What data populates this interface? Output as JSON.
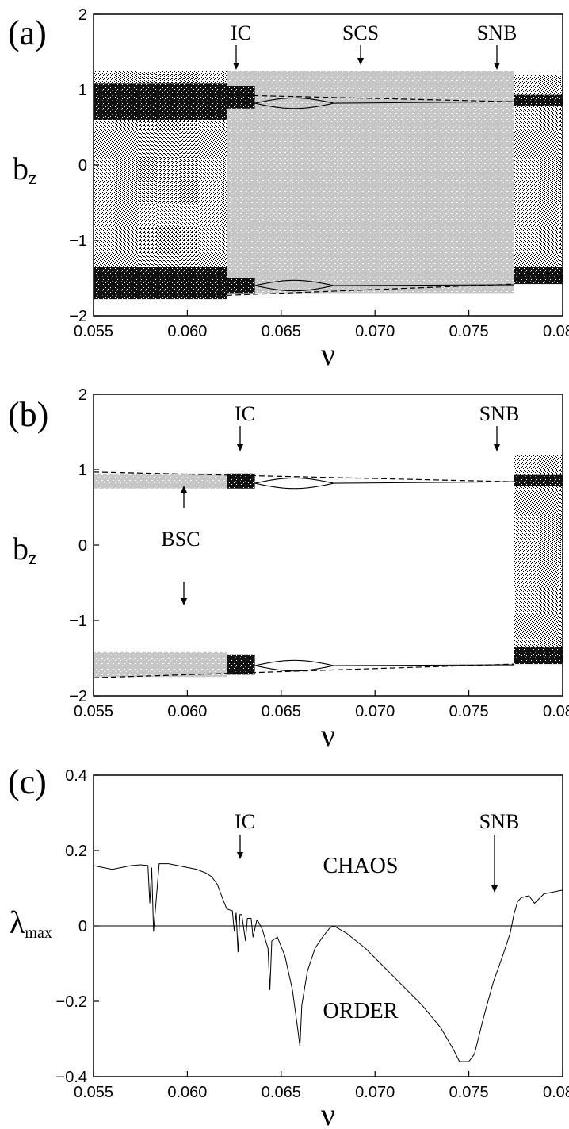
{
  "colors": {
    "chaos_black": "#000000",
    "grey": "#c8c8c8",
    "axis": "#000000"
  },
  "chart_data": [
    {
      "panel": "(a)",
      "type": "scatter",
      "xlabel": "ν",
      "ylabel": "b",
      "ylabel_sub": "z",
      "xlim": [
        0.055,
        0.08
      ],
      "ylim": [
        -2,
        2
      ],
      "xticks": [
        "0.055",
        "0.060",
        "0.065",
        "0.070",
        "0.075",
        "0.080"
      ],
      "yticks": [
        "−2",
        "−1",
        "0",
        "1",
        "2"
      ],
      "annotations": [
        {
          "text": "IC",
          "x": 0.0622
        },
        {
          "text": "SCS",
          "x": 0.0694
        },
        {
          "text": "SNB",
          "x": 0.0775
        }
      ],
      "regions": [
        {
          "name": "chaotic attractor (black)",
          "x": [
            0.055,
            0.0621
          ],
          "y": [
            -1.75,
            1.25
          ]
        },
        {
          "name": "grey chaotic saddle band",
          "x": [
            0.0621,
            0.0774
          ],
          "y": [
            -1.7,
            1.25
          ]
        },
        {
          "name": "chaotic attractor (black)",
          "x": [
            0.0774,
            0.08
          ],
          "y": [
            -1.55,
            1.2
          ]
        }
      ],
      "dashed_branches": [
        {
          "x": [
            0.0621,
            0.0774
          ],
          "y": [
            0.93,
            0.84
          ]
        },
        {
          "x": [
            0.0621,
            0.0774
          ],
          "y": [
            -1.73,
            -1.58
          ]
        }
      ]
    },
    {
      "panel": "(b)",
      "type": "scatter",
      "xlabel": "ν",
      "ylabel": "b",
      "ylabel_sub": "z",
      "xlim": [
        0.055,
        0.08
      ],
      "ylim": [
        -2,
        2
      ],
      "xticks": [
        "0.055",
        "0.060",
        "0.065",
        "0.070",
        "0.075",
        "0.080"
      ],
      "yticks": [
        "−2",
        "−1",
        "0",
        "1",
        "2"
      ],
      "annotations": [
        {
          "text": "IC",
          "x": 0.0622
        },
        {
          "text": "SNB",
          "x": 0.0775
        },
        {
          "text": "BSC",
          "x": 0.059
        }
      ],
      "regions": [
        {
          "name": "grey upper band",
          "x": [
            0.055,
            0.0621
          ],
          "y": [
            0.75,
            0.95
          ]
        },
        {
          "name": "grey lower band",
          "x": [
            0.055,
            0.0621
          ],
          "y": [
            -1.75,
            -1.42
          ]
        },
        {
          "name": "chaotic attractor (black)",
          "x": [
            0.0774,
            0.08
          ],
          "y": [
            -1.55,
            1.2
          ]
        }
      ],
      "dashed_branches": [
        {
          "x": [
            0.055,
            0.0774
          ],
          "y": [
            0.97,
            0.84
          ]
        },
        {
          "x": [
            0.055,
            0.0774
          ],
          "y": [
            -1.76,
            -1.58
          ]
        }
      ]
    },
    {
      "panel": "(c)",
      "type": "line",
      "xlabel": "ν",
      "ylabel": "λ",
      "ylabel_sub": "max",
      "xlim": [
        0.055,
        0.08
      ],
      "ylim": [
        -0.4,
        0.4
      ],
      "xticks": [
        "0.055",
        "0.060",
        "0.065",
        "0.070",
        "0.075",
        "0.080"
      ],
      "yticks": [
        "−0.4",
        "−0.2",
        "0",
        "0.2",
        "0.4"
      ],
      "annotations": [
        {
          "text": "IC",
          "x": 0.0624
        },
        {
          "text": "SNB",
          "x": 0.0775
        }
      ],
      "region_labels": [
        "CHAOS",
        "ORDER"
      ],
      "series": [
        {
          "x": [
            0.055,
            0.0555,
            0.056,
            0.0565,
            0.057,
            0.0575,
            0.0579,
            0.058,
            0.0581,
            0.0582,
            0.0585,
            0.059,
            0.0595,
            0.06,
            0.0605,
            0.061,
            0.0613,
            0.0616,
            0.0619,
            0.0621,
            0.0624,
            0.0625,
            0.0626,
            0.0627,
            0.0628,
            0.0629,
            0.0631,
            0.0632,
            0.0634,
            0.0635,
            0.0637,
            0.0638,
            0.064,
            0.0643,
            0.0644,
            0.0645,
            0.0648,
            0.0652,
            0.0656,
            0.0659,
            0.066,
            0.0661,
            0.0664,
            0.0668,
            0.0672,
            0.0676,
            0.0678,
            0.0685,
            0.0695,
            0.0705,
            0.0715,
            0.0725,
            0.0735,
            0.0742,
            0.0745,
            0.0748,
            0.075,
            0.0753,
            0.0758,
            0.0763,
            0.0768,
            0.0772,
            0.0774,
            0.0776,
            0.0778,
            0.0782,
            0.0785,
            0.079,
            0.0795,
            0.08
          ],
          "y": [
            0.16,
            0.155,
            0.15,
            0.155,
            0.16,
            0.162,
            0.16,
            0.06,
            0.155,
            -0.015,
            0.165,
            0.165,
            0.16,
            0.155,
            0.15,
            0.14,
            0.13,
            0.11,
            0.07,
            0.045,
            0.04,
            -0.015,
            0.035,
            -0.07,
            0.03,
            0.03,
            -0.04,
            0.02,
            0.02,
            -0.03,
            0.015,
            0.01,
            -0.01,
            -0.06,
            -0.17,
            -0.04,
            -0.03,
            -0.08,
            -0.17,
            -0.28,
            -0.32,
            -0.21,
            -0.12,
            -0.06,
            -0.03,
            -0.005,
            0.0,
            -0.02,
            -0.06,
            -0.11,
            -0.16,
            -0.21,
            -0.27,
            -0.33,
            -0.36,
            -0.36,
            -0.36,
            -0.34,
            -0.24,
            -0.15,
            -0.08,
            -0.02,
            0.03,
            0.065,
            0.075,
            0.08,
            0.06,
            0.085,
            0.09,
            0.095
          ]
        }
      ]
    }
  ]
}
